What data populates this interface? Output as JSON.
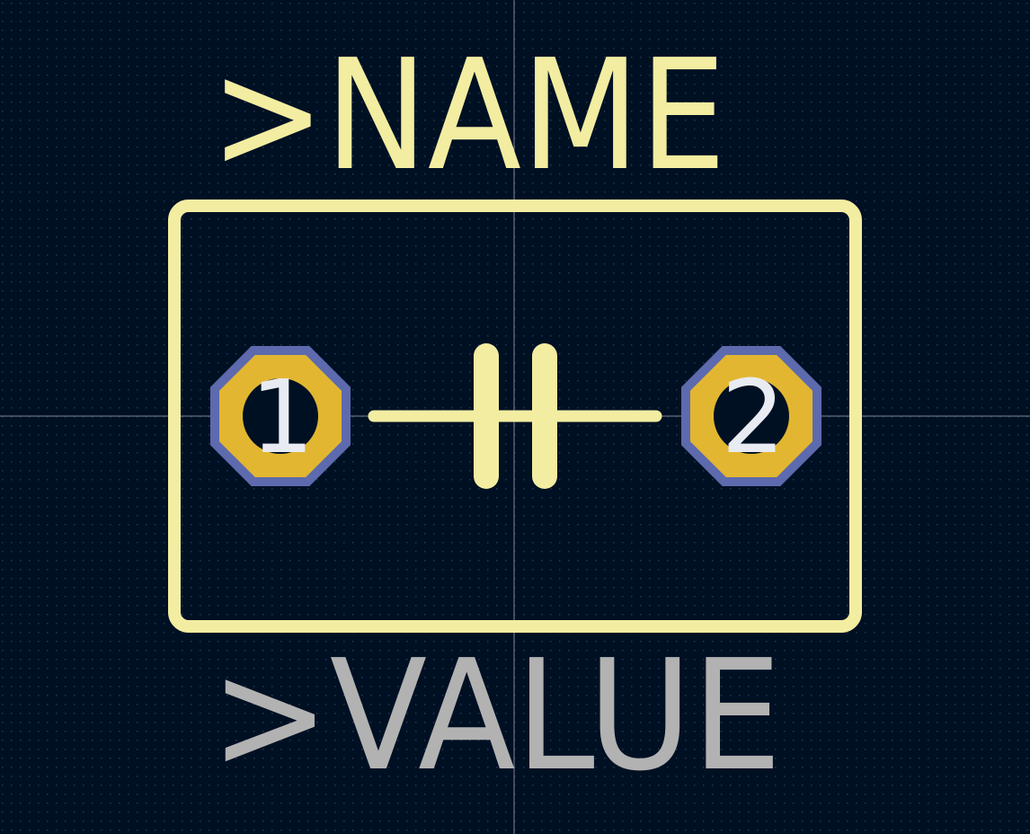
{
  "labels": {
    "name": ">NAME",
    "value": ">VALUE"
  },
  "pads": [
    {
      "label": "1"
    },
    {
      "label": "2"
    }
  ]
}
